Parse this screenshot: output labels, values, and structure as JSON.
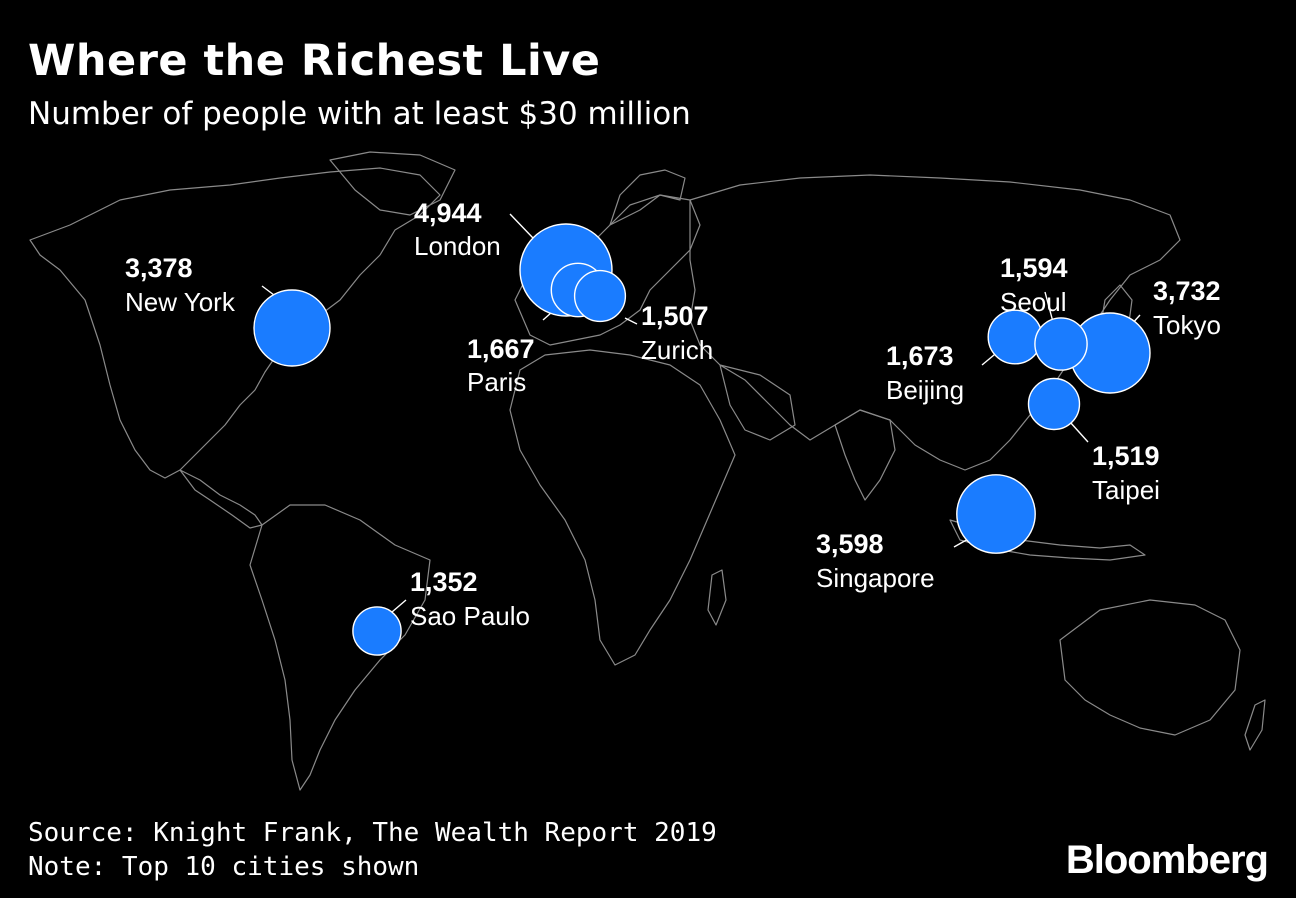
{
  "title": "Where the Richest Live",
  "subtitle": "Number of people with at least $30 million",
  "footer": {
    "source": "Source: Knight Frank, The Wealth Report 2019",
    "note": "Note: Top 10 cities shown"
  },
  "brand": "Bloomberg",
  "colors": {
    "bubble": "#1a7cff",
    "background": "#000000",
    "land_outline": "#8a8a8a"
  },
  "chart_data": {
    "type": "map-bubble",
    "unit": "people",
    "cities": [
      {
        "name": "London",
        "value": 4944,
        "lon": -0.13,
        "lat": 51.5
      },
      {
        "name": "Tokyo",
        "value": 3732,
        "lon": 139.7,
        "lat": 35.7
      },
      {
        "name": "Singapore",
        "value": 3598,
        "lon": 103.8,
        "lat": 1.35
      },
      {
        "name": "New York",
        "value": 3378,
        "lon": -74.0,
        "lat": 40.7
      },
      {
        "name": "Beijing",
        "value": 1673,
        "lon": 116.4,
        "lat": 39.9
      },
      {
        "name": "Paris",
        "value": 1667,
        "lon": 2.35,
        "lat": 48.85
      },
      {
        "name": "Seoul",
        "value": 1594,
        "lon": 127.0,
        "lat": 37.5
      },
      {
        "name": "Taipei",
        "value": 1519,
        "lon": 121.5,
        "lat": 25.0
      },
      {
        "name": "Zurich",
        "value": 1507,
        "lon": 8.54,
        "lat": 47.37
      },
      {
        "name": "Sao Paulo",
        "value": 1352,
        "lon": -46.6,
        "lat": -23.5
      }
    ]
  }
}
